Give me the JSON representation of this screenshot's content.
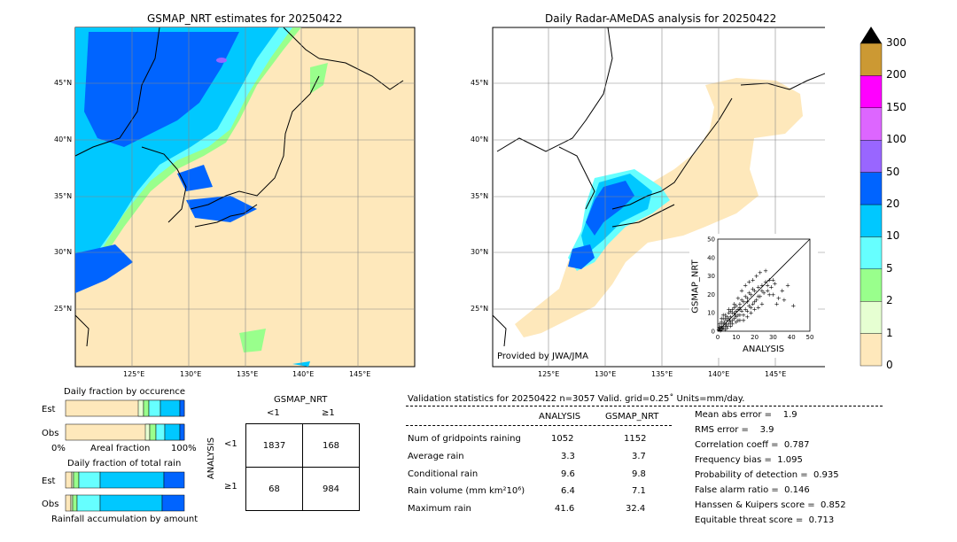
{
  "maps": {
    "left_title": "GSMAP_NRT estimates for 20250422",
    "right_title": "Daily Radar-AMeDAS analysis for 20250422",
    "lat_labels": [
      "45°N",
      "40°N",
      "35°N",
      "30°N",
      "25°N"
    ],
    "lon_labels": [
      "125°E",
      "130°E",
      "135°E",
      "140°E",
      "145°E"
    ],
    "provided_by": "Provided by JWA/JMA"
  },
  "colorbar": {
    "labels": [
      "0",
      "1",
      "2",
      "5",
      "10",
      "20",
      "50",
      "100",
      "150",
      "200",
      "300"
    ],
    "colors": [
      "#fee8bb",
      "#e6ffd2",
      "#99ff8c",
      "#66ffff",
      "#00c8ff",
      "#0064ff",
      "#9966ff",
      "#dd66ff",
      "#ff00ff",
      "#cc9933"
    ],
    "extend_color": "#000000"
  },
  "fraction": {
    "occ_title": "Daily fraction by occurence",
    "amt_title": "Daily fraction of total rain",
    "row_est": "Est",
    "row_obs": "Obs",
    "axis_left": "0%",
    "axis_mid": "Areal fraction",
    "axis_right": "100%",
    "amt_footer": "Rainfall accumulation by amount"
  },
  "contingency": {
    "title": "GSMAP_NRT",
    "col_lt": "<1",
    "col_ge": "≥1",
    "row_label": "ANALYSIS",
    "row_lt": "<1",
    "row_ge": "≥1",
    "cells": [
      [
        "1837",
        "168"
      ],
      [
        "68",
        "984"
      ]
    ]
  },
  "validation": {
    "header": "Validation statistics for 20250422  n=3057 Valid. grid=0.25˚ Units=mm/day.",
    "col_analysis": "ANALYSIS",
    "col_gsmap": "GSMAP_NRT",
    "rows": [
      {
        "label": "Num of gridpoints raining",
        "analysis": "1052",
        "gsmap": "1152"
      },
      {
        "label": "Average rain",
        "analysis": "3.3",
        "gsmap": "3.7"
      },
      {
        "label": "Conditional rain",
        "analysis": "9.6",
        "gsmap": "9.8"
      },
      {
        "label": "Rain volume (mm km²10⁶)",
        "analysis": "6.4",
        "gsmap": "7.1"
      },
      {
        "label": "Maximum rain",
        "analysis": "41.6",
        "gsmap": "32.4"
      }
    ],
    "scores": [
      "Mean abs error =    1.9",
      "RMS error =    3.9",
      "Correlation coeff =  0.787",
      "Frequency bias =  1.095",
      "Probability of detection =  0.935",
      "False alarm ratio =  0.146",
      "Hanssen & Kuipers score =  0.852",
      "Equitable threat score =  0.713"
    ]
  },
  "chart_data": {
    "type": "scatter",
    "xlabel": "ANALYSIS",
    "ylabel": "GSMAP_NRT",
    "xlim": [
      0,
      50
    ],
    "ylim": [
      0,
      50
    ],
    "ticks": [
      "0",
      "10",
      "20",
      "30",
      "40",
      "50"
    ],
    "points": [
      [
        1,
        2
      ],
      [
        2,
        1
      ],
      [
        3,
        4
      ],
      [
        4,
        3
      ],
      [
        5,
        6
      ],
      [
        6,
        4
      ],
      [
        7,
        8
      ],
      [
        8,
        6
      ],
      [
        9,
        10
      ],
      [
        10,
        8
      ],
      [
        11,
        12
      ],
      [
        12,
        9
      ],
      [
        2,
        5
      ],
      [
        3,
        7
      ],
      [
        4,
        9
      ],
      [
        5,
        3
      ],
      [
        6,
        10
      ],
      [
        7,
        5
      ],
      [
        8,
        12
      ],
      [
        9,
        7
      ],
      [
        10,
        14
      ],
      [
        11,
        9
      ],
      [
        12,
        15
      ],
      [
        13,
        11
      ],
      [
        14,
        16
      ],
      [
        15,
        12
      ],
      [
        16,
        18
      ],
      [
        17,
        14
      ],
      [
        18,
        20
      ],
      [
        19,
        15
      ],
      [
        20,
        22
      ],
      [
        21,
        17
      ],
      [
        22,
        24
      ],
      [
        23,
        19
      ],
      [
        24,
        25
      ],
      [
        25,
        21
      ],
      [
        26,
        27
      ],
      [
        27,
        22
      ],
      [
        28,
        28
      ],
      [
        29,
        24
      ],
      [
        30,
        20
      ],
      [
        31,
        26
      ],
      [
        33,
        18
      ],
      [
        35,
        22
      ],
      [
        38,
        25
      ],
      [
        41,
        14
      ],
      [
        13,
        22
      ],
      [
        15,
        25
      ],
      [
        17,
        27
      ],
      [
        19,
        28
      ],
      [
        21,
        30
      ],
      [
        23,
        32
      ],
      [
        14,
        6
      ],
      [
        16,
        8
      ],
      [
        18,
        10
      ],
      [
        20,
        12
      ],
      [
        22,
        13
      ],
      [
        24,
        15
      ],
      [
        9,
        15
      ],
      [
        11,
        18
      ],
      [
        6,
        12
      ],
      [
        4,
        7
      ],
      [
        3,
        2
      ],
      [
        1,
        1
      ],
      [
        2,
        3
      ],
      [
        5,
        8
      ],
      [
        7,
        3
      ],
      [
        8,
        10
      ],
      [
        10,
        5
      ],
      [
        12,
        6
      ],
      [
        13,
        17
      ],
      [
        26,
        33
      ],
      [
        28,
        20
      ],
      [
        32,
        15
      ],
      [
        36,
        17
      ],
      [
        1,
        4
      ],
      [
        2,
        7
      ],
      [
        3,
        9
      ],
      [
        4,
        1
      ],
      [
        5,
        2
      ],
      [
        6,
        7
      ],
      [
        7,
        11
      ],
      [
        8,
        4
      ],
      [
        9,
        13
      ],
      [
        10,
        11
      ],
      [
        11,
        6
      ],
      [
        12,
        13
      ],
      [
        14,
        9
      ],
      [
        15,
        19
      ],
      [
        16,
        11
      ],
      [
        17,
        21
      ],
      [
        18,
        13
      ],
      [
        19,
        23
      ],
      [
        20,
        16
      ],
      [
        22,
        19
      ],
      [
        24,
        22
      ],
      [
        27,
        25
      ],
      [
        30,
        28
      ],
      [
        0.5,
        1
      ],
      [
        1.5,
        0.5
      ],
      [
        0.8,
        2.5
      ],
      [
        2.5,
        1.8
      ],
      [
        3.5,
        5
      ],
      [
        4.5,
        4.2
      ],
      [
        6.5,
        6
      ],
      [
        9.5,
        9
      ],
      [
        12,
        12
      ],
      [
        16,
        16
      ]
    ]
  }
}
